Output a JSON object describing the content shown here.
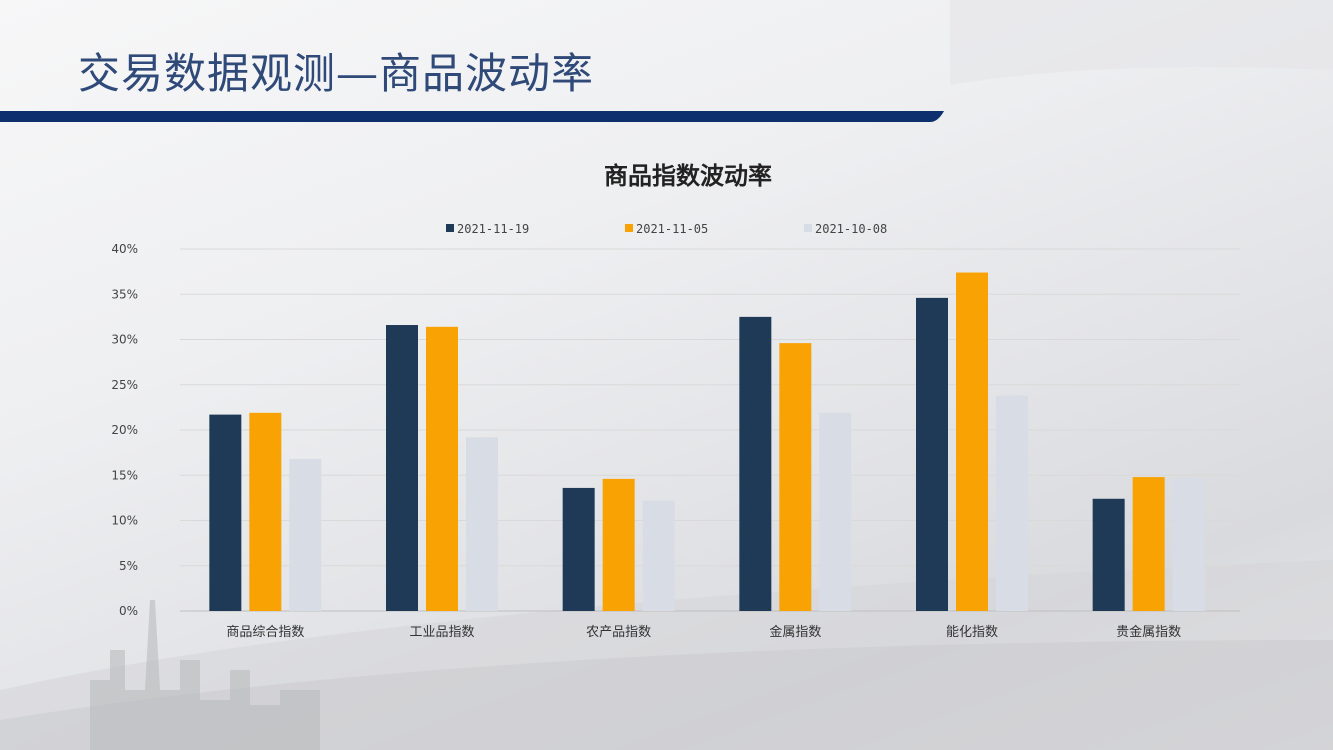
{
  "page": {
    "title": "交易数据观测—商品波动率",
    "colors": {
      "title": "#2f4a78",
      "bar_accent": "#0d2f6e"
    }
  },
  "chart_data": {
    "type": "bar",
    "title": "商品指数波动率",
    "categories": [
      "商品综合指数",
      "工业品指数",
      "农产品指数",
      "金属指数",
      "能化指数",
      "贵金属指数"
    ],
    "series": [
      {
        "name": "2021-11-19",
        "color": "#1f3a57",
        "values": [
          21.7,
          31.6,
          13.6,
          32.5,
          34.6,
          12.4
        ]
      },
      {
        "name": "2021-11-05",
        "color": "#f8a303",
        "values": [
          21.9,
          31.4,
          14.6,
          29.6,
          37.4,
          14.8
        ]
      },
      {
        "name": "2021-10-08",
        "color": "#d8dde5",
        "values": [
          16.8,
          19.2,
          12.2,
          21.9,
          23.8,
          14.7
        ]
      }
    ],
    "yticks": [
      "0%",
      "5%",
      "10%",
      "15%",
      "20%",
      "25%",
      "30%",
      "35%",
      "40%"
    ],
    "ylim": [
      0,
      40
    ],
    "grid": true,
    "legend_position": "top"
  }
}
